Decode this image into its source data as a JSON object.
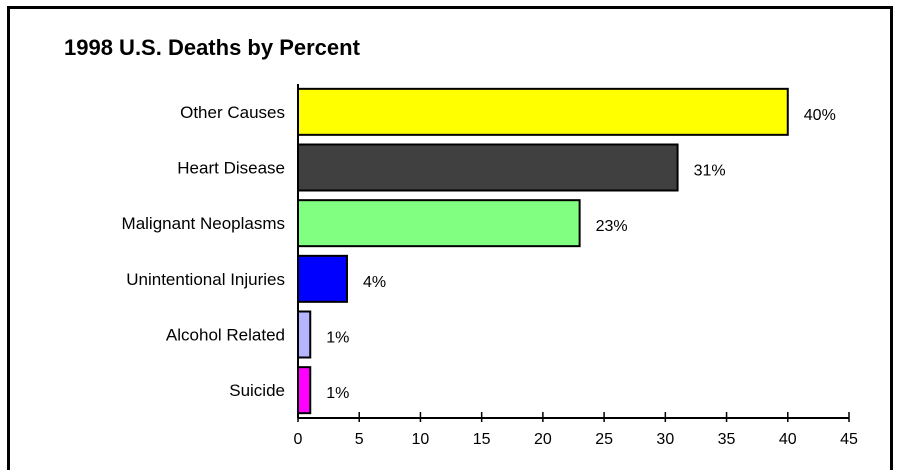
{
  "chart_data": {
    "type": "bar",
    "orientation": "horizontal",
    "title": "1998 U.S. Deaths by Percent",
    "xlabel": "",
    "ylabel": "",
    "categories": [
      "Other Causes",
      "Heart Disease",
      "Malignant Neoplasms",
      "Unintentional Injuries",
      "Alcohol Related",
      "Suicide"
    ],
    "values": [
      40,
      31,
      23,
      4,
      1,
      1
    ],
    "data_labels": [
      "40%",
      "31%",
      "23%",
      "4%",
      "1%",
      "1%"
    ],
    "colors": [
      "#ffff00",
      "#404040",
      "#80ff80",
      "#0000ff",
      "#b4b4ff",
      "#ff00ff"
    ],
    "xlim": [
      0,
      45
    ],
    "xticks": [
      0,
      5,
      10,
      15,
      20,
      25,
      30,
      35,
      40,
      45
    ],
    "grid": false,
    "legend": "none"
  }
}
